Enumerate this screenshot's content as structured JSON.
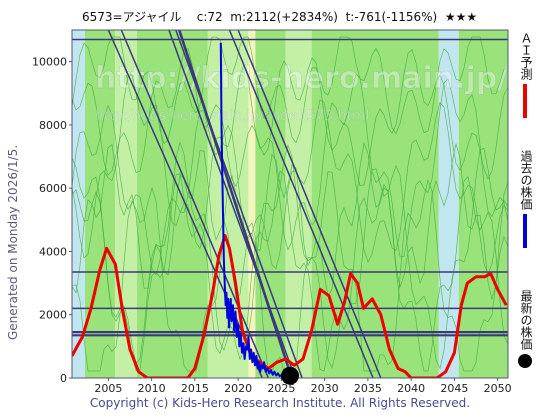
{
  "header": "6573=アジャイル    c:72  m:2112(+2834%)  t:-761(-1156%)  ★★★",
  "side_label": "Generated on Monday 2026/1/5.",
  "footer": "Copyright (c) Kids-Hero Research Institute. All Rights Reserved.",
  "watermark": {
    "line1": "http://kids-hero.main.jp/",
    "line2": "http://kids-hero.main.jp/code6573.html"
  },
  "legend": [
    {
      "label": "ＡＩ予測",
      "color": "#ee0000"
    },
    {
      "label": "過去の株価",
      "color": "#0000dd"
    },
    {
      "label": "最新の株価",
      "color": "#000000"
    }
  ],
  "colors": {
    "green": "#99e37a",
    "light_green": "#c4f0a6",
    "blue_band": "#c2e6ef",
    "cream": "#f4f4bf",
    "trend": "#3a3a78",
    "ai": "#ee0000",
    "past": "#0000dd"
  },
  "chart_data": {
    "type": "line",
    "xlim": [
      2000.8,
      2051.2
    ],
    "ylim": [
      0,
      11000
    ],
    "x_ticks": [
      2005,
      2010,
      2015,
      2020,
      2025,
      2030,
      2035,
      2040,
      2045,
      2050
    ],
    "y_ticks": [
      0,
      2000,
      4000,
      6000,
      8000,
      10000
    ],
    "horizontal_lines": [
      10700,
      3350,
      2200,
      1450,
      1350
    ],
    "trend_lines": [
      [
        [
          2006.5,
          11000
        ],
        [
          2023.5,
          0
        ]
      ],
      [
        [
          2005.0,
          11000
        ],
        [
          2022.8,
          0
        ]
      ],
      [
        [
          2012.0,
          11000
        ],
        [
          2026.6,
          0
        ]
      ],
      [
        [
          2012.8,
          11000
        ],
        [
          2027.4,
          0
        ]
      ],
      [
        [
          2013.2,
          11000
        ],
        [
          2026.2,
          0
        ]
      ],
      [
        [
          2019.0,
          11000
        ],
        [
          2035.6,
          0
        ]
      ],
      [
        [
          2020.0,
          11000
        ],
        [
          2036.5,
          0
        ]
      ]
    ],
    "background_bands": [
      {
        "x": [
          2000.8,
          2002.3
        ],
        "color": "blue_band"
      },
      {
        "x": [
          2002.3,
          2005.8
        ],
        "color": "green"
      },
      {
        "x": [
          2005.8,
          2008.3
        ],
        "color": "light_green"
      },
      {
        "x": [
          2008.3,
          2016.5
        ],
        "color": "green"
      },
      {
        "x": [
          2016.5,
          2021.2
        ],
        "color": "light_green"
      },
      {
        "x": [
          2021.2,
          2022.0
        ],
        "color": "cream"
      },
      {
        "x": [
          2022.0,
          2025.5
        ],
        "color": "green"
      },
      {
        "x": [
          2025.5,
          2028.5
        ],
        "color": "light_green"
      },
      {
        "x": [
          2028.5,
          2043.2
        ],
        "color": "green"
      },
      {
        "x": [
          2043.2,
          2045.5
        ],
        "color": "blue_band"
      },
      {
        "x": [
          2045.5,
          2051.2
        ],
        "color": "green"
      }
    ],
    "series": [
      {
        "key": "ai",
        "x": [
          2000.8,
          2002.0,
          2003.0,
          2004.0,
          2004.8,
          2005.8,
          2006.6,
          2007.5,
          2008.5,
          2009.5,
          2010.5,
          2011.5,
          2012.5,
          2013.5,
          2014.2,
          2015.0,
          2016.0,
          2017.0,
          2017.8,
          2018.5,
          2019.0,
          2019.7,
          2020.5,
          2021.5,
          2022.5,
          2023.5,
          2024.5,
          2025.5,
          2026.5,
          2027.5,
          2028.5,
          2029.5,
          2030.5,
          2031.5,
          2032.3,
          2033.0,
          2033.8,
          2034.5,
          2035.5,
          2036.5,
          2037.5,
          2038.5,
          2039.3,
          2040.0,
          2041.0,
          2042.0,
          2043.0,
          2044.0,
          2045.0,
          2045.8,
          2046.5,
          2047.5,
          2048.5,
          2049.2,
          2050.0,
          2051.0
        ],
        "y": [
          700,
          1300,
          2200,
          3400,
          4100,
          3600,
          2200,
          900,
          200,
          0,
          0,
          0,
          0,
          0,
          0,
          300,
          1300,
          2600,
          3900,
          4500,
          4100,
          3000,
          1500,
          700,
          500,
          300,
          500,
          600,
          400,
          600,
          1500,
          2800,
          2600,
          1700,
          2400,
          3300,
          3000,
          2200,
          2500,
          2000,
          900,
          300,
          200,
          0,
          0,
          0,
          0,
          200,
          800,
          2300,
          3000,
          3200,
          3200,
          3300,
          2800,
          2300
        ]
      },
      {
        "key": "past",
        "x": [
          2018.0,
          2018.08,
          2018.15,
          2018.25,
          2018.35,
          2018.45,
          2018.55,
          2018.65,
          2018.75,
          2018.85,
          2018.95,
          2019.05,
          2019.15,
          2019.25,
          2019.4,
          2019.55,
          2019.7,
          2019.85,
          2020.0,
          2020.15,
          2020.3,
          2020.45,
          2020.6,
          2020.75,
          2020.9,
          2021.05,
          2021.2,
          2021.35,
          2021.5,
          2021.65,
          2021.8,
          2021.95,
          2022.1,
          2022.25,
          2022.4,
          2022.55,
          2022.7,
          2022.85,
          2023.0,
          2023.2,
          2023.4,
          2023.6,
          2023.8,
          2024.0,
          2024.2,
          2024.4,
          2024.6,
          2024.8,
          2025.0,
          2025.2,
          2025.4,
          2025.6
        ],
        "y": [
          10600,
          8000,
          6800,
          5200,
          3800,
          3000,
          2300,
          2700,
          1900,
          2500,
          1600,
          2200,
          2500,
          1800,
          2300,
          1500,
          2100,
          1300,
          1700,
          1000,
          1400,
          800,
          1100,
          600,
          1000,
          900,
          1300,
          600,
          900,
          500,
          800,
          400,
          700,
          300,
          500,
          200,
          400,
          300,
          500,
          200,
          300,
          150,
          250,
          100,
          200,
          80,
          150,
          60,
          90,
          70,
          80,
          72
        ]
      }
    ],
    "latest_point": {
      "x": 2026.0,
      "y": 72
    }
  }
}
